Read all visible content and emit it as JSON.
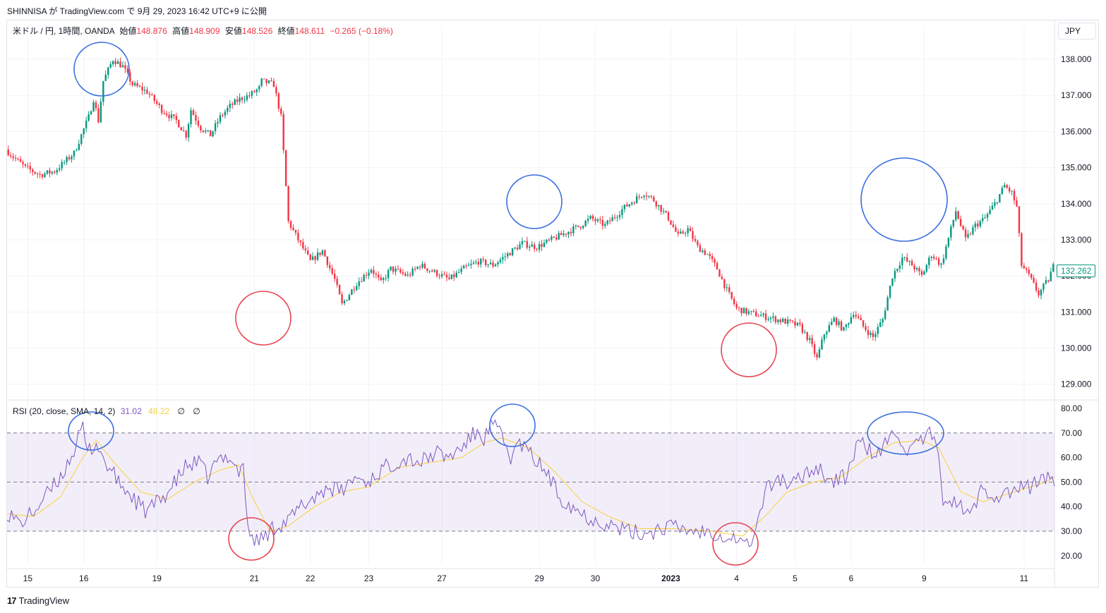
{
  "published": "SHINNISA が TradingView.com で 9月 29, 2023 16:42 UTC+9 に公開",
  "legend": {
    "symbol": "米ドル / 円, 1時間, OANDA",
    "open_label": "始値",
    "open": "148.876",
    "high_label": "高値",
    "high": "148.909",
    "low_label": "安値",
    "low": "148.526",
    "close_label": "終値",
    "close": "148.611",
    "change": "−0.265 (−0.18%)"
  },
  "currency_button": "JPY",
  "last_price_tag": "132.262",
  "rsi_legend": {
    "name": "RSI (20, close, SMA, 14, 2)",
    "rsi": "31.02",
    "sma": "48.22",
    "na1": "∅",
    "na2": "∅"
  },
  "brand": {
    "logo": "17",
    "name": "TradingView"
  },
  "colors": {
    "up": "#089981",
    "down": "#f23645",
    "rsi": "#7e57c2",
    "sma": "#f7d13d",
    "band": "#7e57c2",
    "circle_blue": "#3a6fe0",
    "circle_red": "#e8434e"
  },
  "chart_data": [
    {
      "type": "candlestick",
      "title": "",
      "y_axis_labels": [
        "138.000",
        "137.000",
        "136.000",
        "135.000",
        "134.000",
        "133.000",
        "132.000",
        "131.000",
        "130.000",
        "129.000"
      ],
      "ylim": [
        128.7,
        138.9
      ],
      "x_tick_labels": [
        "15",
        "16",
        "19",
        "21",
        "22",
        "23",
        "27",
        "29",
        "30",
        "2023",
        "4",
        "5",
        "6",
        "9",
        "11"
      ],
      "x_tick_bar_index": [
        8,
        31,
        61,
        101,
        124,
        148,
        178,
        218,
        241,
        272,
        299,
        323,
        346,
        376,
        417
      ],
      "bar_count": 430,
      "anchors_bar_close": [
        [
          0,
          135.5
        ],
        [
          3,
          135.3
        ],
        [
          8,
          135.0
        ],
        [
          14,
          134.8
        ],
        [
          20,
          134.9
        ],
        [
          28,
          135.4
        ],
        [
          34,
          136.4
        ],
        [
          36,
          136.9
        ],
        [
          38,
          136.3
        ],
        [
          40,
          137.4
        ],
        [
          44,
          138.0
        ],
        [
          48,
          137.8
        ],
        [
          52,
          137.3
        ],
        [
          58,
          137.1
        ],
        [
          64,
          136.6
        ],
        [
          70,
          136.3
        ],
        [
          74,
          135.9
        ],
        [
          76,
          136.6
        ],
        [
          80,
          136.1
        ],
        [
          84,
          135.9
        ],
        [
          88,
          136.4
        ],
        [
          92,
          136.7
        ],
        [
          96,
          136.9
        ],
        [
          100,
          137.0
        ],
        [
          104,
          137.2
        ],
        [
          105,
          137.4
        ],
        [
          110,
          137.3
        ],
        [
          113,
          136.4
        ],
        [
          116,
          133.5
        ],
        [
          120,
          133.0
        ],
        [
          125,
          132.4
        ],
        [
          130,
          132.7
        ],
        [
          135,
          131.9
        ],
        [
          138,
          131.2
        ],
        [
          140,
          131.4
        ],
        [
          144,
          131.8
        ],
        [
          150,
          132.2
        ],
        [
          154,
          131.8
        ],
        [
          158,
          132.2
        ],
        [
          165,
          132.0
        ],
        [
          170,
          132.3
        ],
        [
          176,
          132.1
        ],
        [
          182,
          131.9
        ],
        [
          188,
          132.2
        ],
        [
          194,
          132.4
        ],
        [
          200,
          132.3
        ],
        [
          206,
          132.6
        ],
        [
          212,
          132.9
        ],
        [
          218,
          132.8
        ],
        [
          224,
          133.0
        ],
        [
          230,
          133.2
        ],
        [
          236,
          133.4
        ],
        [
          240,
          133.6
        ],
        [
          246,
          133.4
        ],
        [
          254,
          133.9
        ],
        [
          262,
          134.3
        ],
        [
          266,
          134.1
        ],
        [
          272,
          133.6
        ],
        [
          276,
          133.1
        ],
        [
          280,
          133.3
        ],
        [
          284,
          132.8
        ],
        [
          288,
          132.6
        ],
        [
          292,
          132.2
        ],
        [
          296,
          131.6
        ],
        [
          300,
          131.1
        ],
        [
          304,
          131.0
        ],
        [
          310,
          130.9
        ],
        [
          316,
          130.8
        ],
        [
          322,
          130.7
        ],
        [
          326,
          130.6
        ],
        [
          330,
          130.2
        ],
        [
          333,
          129.7
        ],
        [
          336,
          130.4
        ],
        [
          340,
          130.8
        ],
        [
          344,
          130.5
        ],
        [
          348,
          131.0
        ],
        [
          352,
          130.6
        ],
        [
          356,
          130.3
        ],
        [
          360,
          130.8
        ],
        [
          364,
          132.0
        ],
        [
          368,
          132.5
        ],
        [
          372,
          132.3
        ],
        [
          376,
          132.0
        ],
        [
          380,
          132.6
        ],
        [
          384,
          132.3
        ],
        [
          390,
          133.8
        ],
        [
          394,
          133.0
        ],
        [
          398,
          133.4
        ],
        [
          402,
          133.6
        ],
        [
          406,
          134.0
        ],
        [
          410,
          134.5
        ],
        [
          413,
          134.3
        ],
        [
          415,
          133.9
        ],
        [
          417,
          132.3
        ],
        [
          420,
          132.0
        ],
        [
          424,
          131.5
        ],
        [
          428,
          131.9
        ],
        [
          430,
          132.26
        ]
      ],
      "annotations": [
        {
          "shape": "circle",
          "color": "blue",
          "near": "16 high ≈138.0"
        },
        {
          "shape": "circle",
          "color": "red",
          "near": "21 low ≈130.9"
        },
        {
          "shape": "circle",
          "color": "blue",
          "near": "29 ≈134.1"
        },
        {
          "shape": "circle",
          "color": "red",
          "near": "4 low ≈129.8"
        },
        {
          "shape": "circle",
          "color": "blue",
          "near": "6–9 high ≈134.3"
        }
      ]
    },
    {
      "type": "line",
      "title": "RSI (20, close, SMA, 14, 2)",
      "y_axis_labels": [
        "80.00",
        "70.00",
        "60.00",
        "50.00",
        "40.00",
        "30.00",
        "20.00"
      ],
      "ylim": [
        16.5,
        82
      ],
      "band": [
        30,
        70
      ],
      "midline": 50,
      "series": [
        {
          "name": "RSI",
          "anchors": [
            [
              0,
              38
            ],
            [
              6,
              33
            ],
            [
              12,
              38
            ],
            [
              18,
              45
            ],
            [
              24,
              52
            ],
            [
              30,
              63
            ],
            [
              34,
              72
            ],
            [
              36,
              62
            ],
            [
              40,
              66
            ],
            [
              44,
              58
            ],
            [
              50,
              50
            ],
            [
              56,
              44
            ],
            [
              62,
              38
            ],
            [
              68,
              42
            ],
            [
              74,
              48
            ],
            [
              80,
              56
            ],
            [
              86,
              58
            ],
            [
              90,
              52
            ],
            [
              94,
              58
            ],
            [
              100,
              61
            ],
            [
              104,
              54
            ],
            [
              106,
              58
            ],
            [
              108,
              30
            ],
            [
              112,
              26
            ],
            [
              116,
              28
            ],
            [
              120,
              32
            ],
            [
              126,
              34
            ],
            [
              132,
              40
            ],
            [
              138,
              44
            ],
            [
              144,
              48
            ],
            [
              150,
              46
            ],
            [
              156,
              52
            ],
            [
              162,
              50
            ],
            [
              168,
              55
            ],
            [
              174,
              58
            ],
            [
              180,
              60
            ],
            [
              186,
              58
            ],
            [
              192,
              62
            ],
            [
              198,
              60
            ],
            [
              204,
              64
            ],
            [
              210,
              70
            ],
            [
              214,
              68
            ],
            [
              218,
              74
            ],
            [
              222,
              68
            ],
            [
              226,
              60
            ],
            [
              230,
              66
            ],
            [
              236,
              60
            ],
            [
              242,
              54
            ],
            [
              248,
              44
            ],
            [
              254,
              40
            ],
            [
              260,
              36
            ],
            [
              266,
              34
            ],
            [
              272,
              32
            ],
            [
              278,
              30
            ],
            [
              284,
              29
            ],
            [
              290,
              30
            ],
            [
              296,
              32
            ],
            [
              302,
              31
            ],
            [
              310,
              30
            ],
            [
              316,
              30
            ],
            [
              322,
              28
            ],
            [
              328,
              27
            ],
            [
              332,
              24
            ],
            [
              336,
              30
            ],
            [
              340,
              46
            ],
            [
              346,
              52
            ],
            [
              352,
              48
            ],
            [
              358,
              54
            ],
            [
              364,
              56
            ],
            [
              370,
              50
            ],
            [
              376,
              52
            ],
            [
              382,
              66
            ],
            [
              386,
              64
            ],
            [
              390,
              60
            ],
            [
              396,
              68
            ],
            [
              400,
              70
            ],
            [
              404,
              62
            ],
            [
              410,
              66
            ],
            [
              414,
              70
            ],
            [
              418,
              60
            ],
            [
              420,
              44
            ],
            [
              424,
              42
            ],
            [
              428,
              40
            ],
            [
              432,
              36
            ],
            [
              438,
              48
            ],
            [
              444,
              44
            ],
            [
              450,
              46
            ],
            [
              458,
              48
            ],
            [
              466,
              52
            ],
            [
              470,
              50
            ]
          ]
        },
        {
          "name": "SMA",
          "anchors": [
            [
              0,
              37
            ],
            [
              12,
              36
            ],
            [
              24,
              44
            ],
            [
              34,
              60
            ],
            [
              40,
              67
            ],
            [
              48,
              58
            ],
            [
              60,
              46
            ],
            [
              72,
              43
            ],
            [
              84,
              50
            ],
            [
              96,
              55
            ],
            [
              104,
              57
            ],
            [
              110,
              44
            ],
            [
              118,
              30
            ],
            [
              126,
              32
            ],
            [
              138,
              40
            ],
            [
              150,
              46
            ],
            [
              162,
              48
            ],
            [
              176,
              56
            ],
            [
              190,
              58
            ],
            [
              204,
              60
            ],
            [
              214,
              66
            ],
            [
              222,
              68
            ],
            [
              234,
              64
            ],
            [
              246,
              54
            ],
            [
              258,
              42
            ],
            [
              270,
              36
            ],
            [
              284,
              31
            ],
            [
              300,
              31
            ],
            [
              316,
              30
            ],
            [
              330,
              28
            ],
            [
              340,
              36
            ],
            [
              350,
              46
            ],
            [
              362,
              50
            ],
            [
              374,
              52
            ],
            [
              386,
              60
            ],
            [
              398,
              66
            ],
            [
              410,
              67
            ],
            [
              418,
              64
            ],
            [
              428,
              46
            ],
            [
              438,
              42
            ],
            [
              452,
              46
            ],
            [
              466,
              50
            ],
            [
              470,
              52
            ]
          ]
        }
      ],
      "annotations": [
        {
          "shape": "ellipse",
          "color": "blue",
          "near": "16 ≈72"
        },
        {
          "shape": "ellipse",
          "color": "red",
          "near": "21 ≈26"
        },
        {
          "shape": "ellipse",
          "color": "blue",
          "near": "29 ≈74"
        },
        {
          "shape": "ellipse",
          "color": "red",
          "near": "4 ≈24"
        },
        {
          "shape": "ellipse",
          "color": "blue",
          "near": "6–9 ≈70"
        }
      ]
    }
  ]
}
